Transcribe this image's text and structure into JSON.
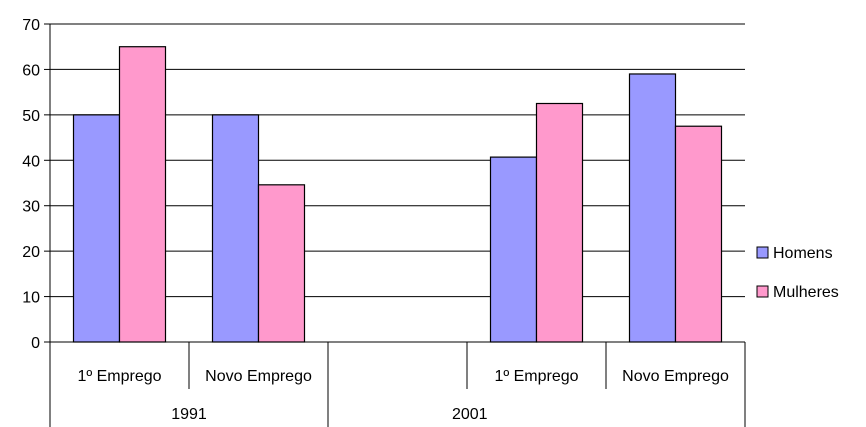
{
  "chart_data": {
    "type": "bar",
    "title": "",
    "xlabel": "",
    "ylabel": "",
    "ylim": [
      0,
      70
    ],
    "yticks": [
      0,
      10,
      20,
      30,
      40,
      50,
      60,
      70
    ],
    "grid": true,
    "legend_position": "right",
    "groups": [
      {
        "label": "1991",
        "categories": [
          "1º Emprego",
          "Novo Emprego"
        ]
      },
      {
        "label": "2001",
        "categories": [
          "1º Emprego",
          "Novo Emprego"
        ]
      }
    ],
    "series": [
      {
        "name": "Homens",
        "color": "#9999ff",
        "values": [
          50,
          50,
          40.7,
          59
        ]
      },
      {
        "name": "Mulheres",
        "color": "#ff99cc",
        "values": [
          65,
          34.6,
          52.5,
          47.5
        ]
      }
    ]
  }
}
